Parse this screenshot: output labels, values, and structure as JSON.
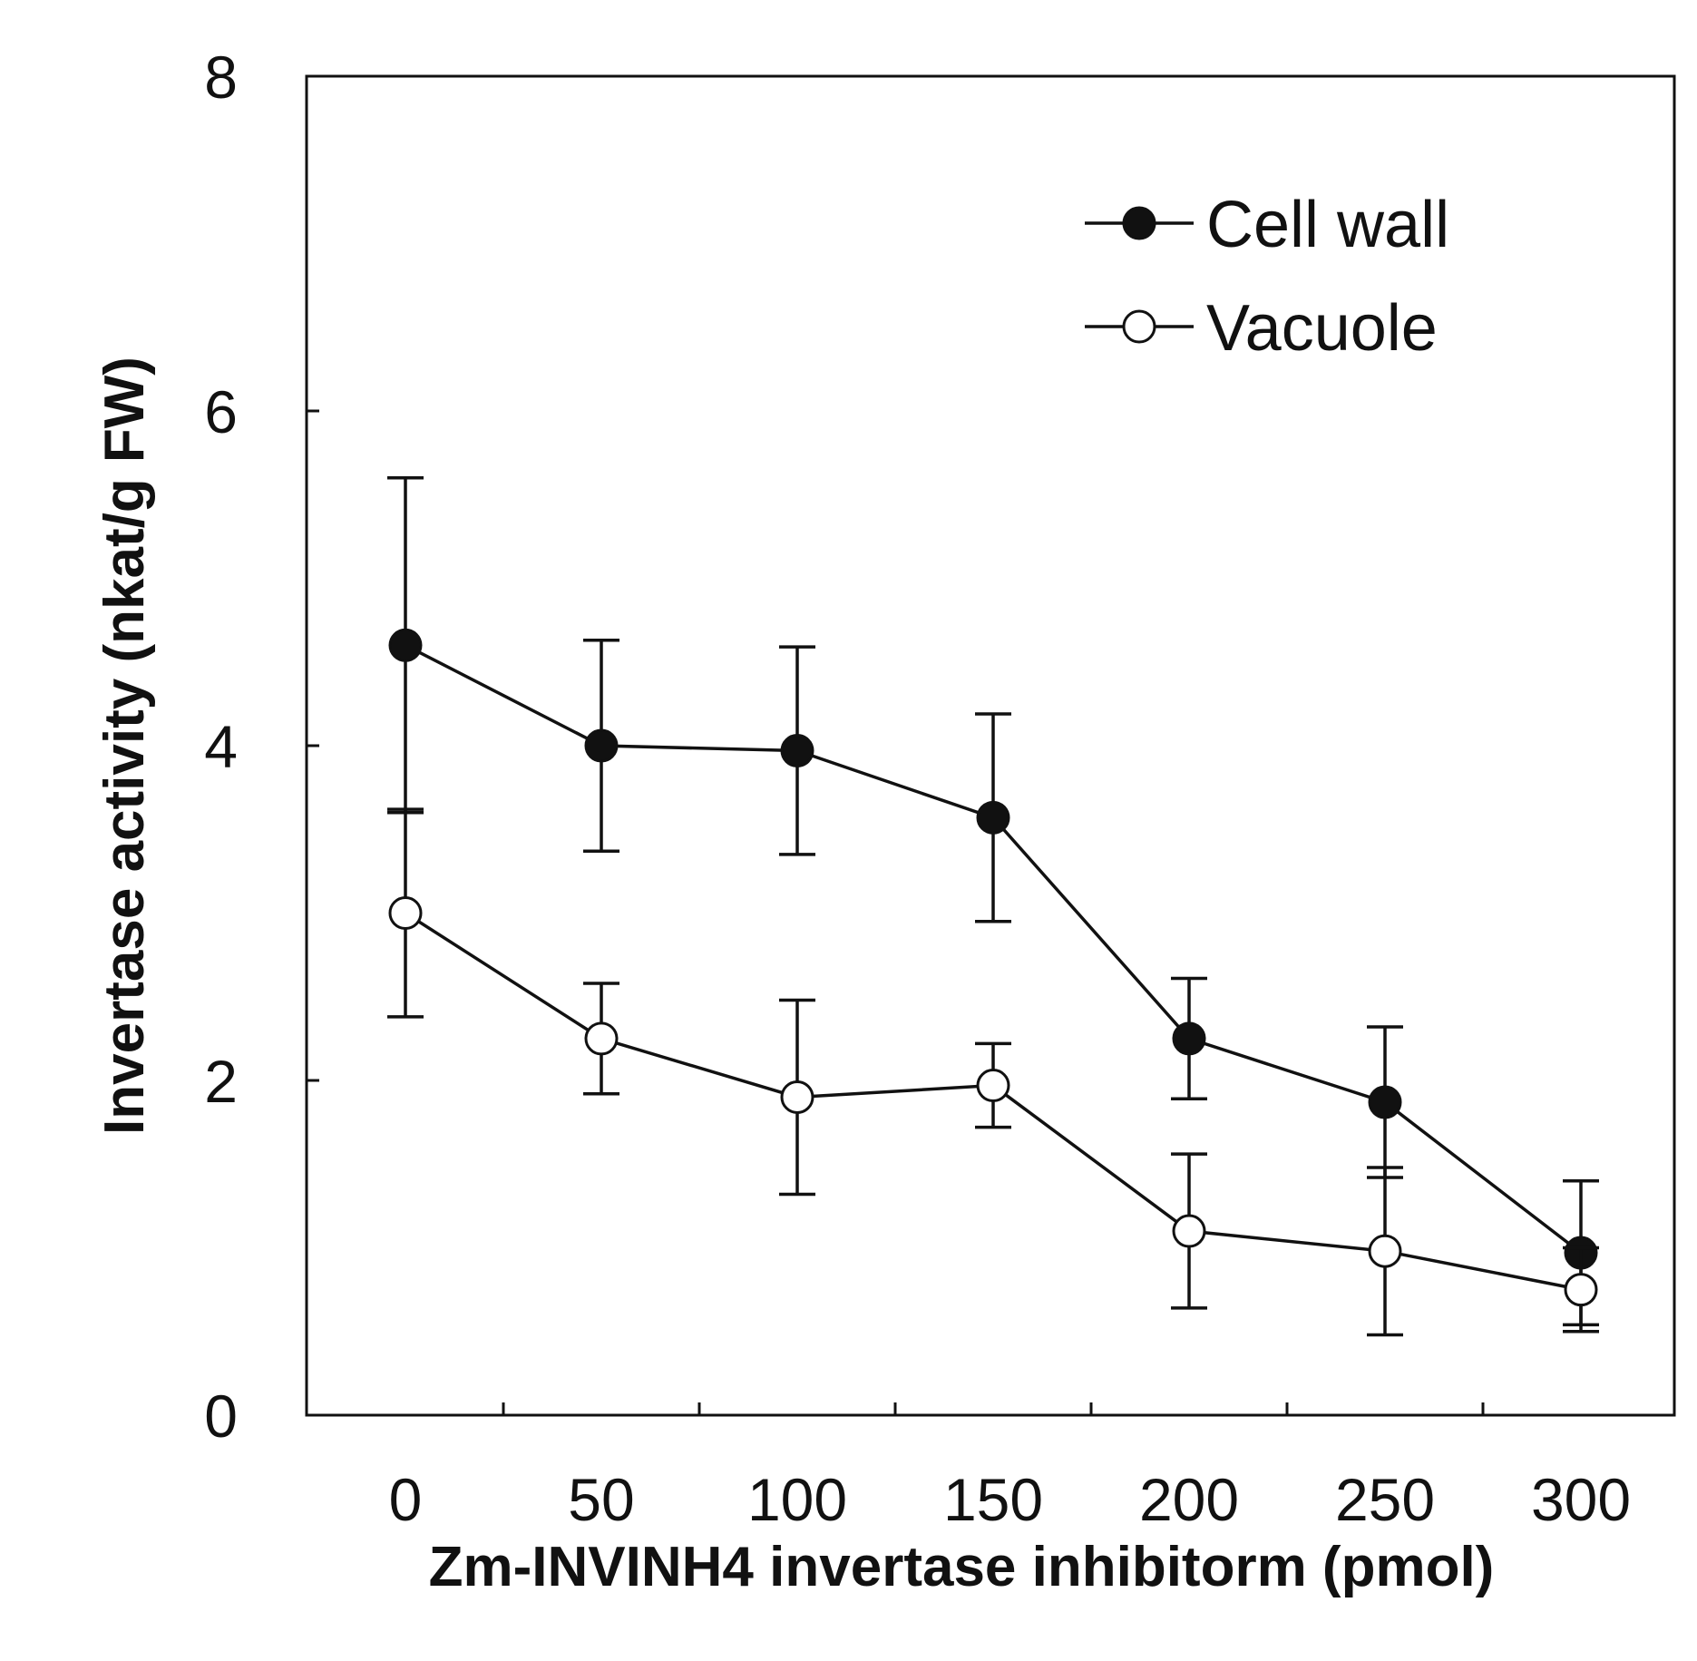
{
  "chart_data": {
    "type": "line",
    "title": "",
    "xlabel": "Zm-INVINH4 invertase inhibitorm (pmol)",
    "ylabel": "Invertase activity (nkat/g FW)",
    "categories": [
      "0",
      "50",
      "100",
      "150",
      "200",
      "250",
      "300"
    ],
    "ylim": [
      0,
      8
    ],
    "yticks": [
      0,
      2,
      4,
      6,
      8
    ],
    "grid": false,
    "legend_position": "top-right",
    "series": [
      {
        "name": "Cell wall",
        "marker": "filled-circle",
        "values": [
          4.6,
          4.0,
          3.97,
          3.57,
          2.25,
          1.87,
          0.97
        ],
        "errors": [
          1.0,
          0.63,
          0.62,
          0.62,
          0.36,
          0.45,
          0.43
        ]
      },
      {
        "name": "Vacuole",
        "marker": "open-circle",
        "values": [
          3.0,
          2.25,
          1.9,
          1.97,
          1.1,
          0.98,
          0.75
        ],
        "errors": [
          0.62,
          0.33,
          0.58,
          0.25,
          0.46,
          0.5,
          0.25
        ]
      }
    ]
  }
}
